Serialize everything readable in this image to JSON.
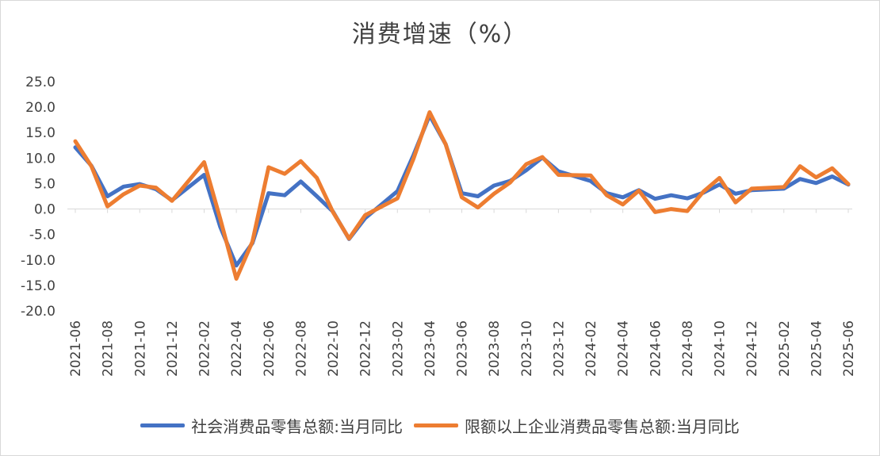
{
  "chart_data": {
    "type": "line",
    "title": "消费增速（%）",
    "xlabel": "",
    "ylabel": "",
    "ylim": [
      -20,
      25
    ],
    "yticks": [
      "25.0",
      "20.0",
      "15.0",
      "10.0",
      "5.0",
      "0.0",
      "-5.0",
      "-10.0",
      "-15.0",
      "-20.0"
    ],
    "ytick_values": [
      25,
      20,
      15,
      10,
      5,
      0,
      -5,
      -10,
      -15,
      -20
    ],
    "categories": [
      "2021-06",
      "2021-07",
      "2021-08",
      "2021-09",
      "2021-10",
      "2021-11",
      "2021-12",
      "2022-01",
      "2022-02",
      "2022-03",
      "2022-04",
      "2022-05",
      "2022-06",
      "2022-07",
      "2022-08",
      "2022-09",
      "2022-10",
      "2022-11",
      "2022-12",
      "2023-01",
      "2023-02",
      "2023-03",
      "2023-04",
      "2023-05",
      "2023-06",
      "2023-07",
      "2023-08",
      "2023-09",
      "2023-10",
      "2023-11",
      "2023-12",
      "2024-01",
      "2024-02",
      "2024-03",
      "2024-04",
      "2024-05",
      "2024-06",
      "2024-07",
      "2024-08",
      "2024-09",
      "2024-10",
      "2024-11",
      "2024-12",
      "2025-01",
      "2025-02",
      "2025-03",
      "2025-04",
      "2025-05",
      "2025-06"
    ],
    "xtick_labels": [
      "2021-06",
      "2021-08",
      "2021-10",
      "2021-12",
      "2022-02",
      "2022-04",
      "2022-06",
      "2022-08",
      "2022-10",
      "2022-12",
      "2023-02",
      "2023-04",
      "2023-06",
      "2023-08",
      "2023-10",
      "2023-12",
      "2024-02",
      "2024-04",
      "2024-06",
      "2024-08",
      "2024-10",
      "2024-12",
      "2025-02",
      "2025-04",
      "2025-06"
    ],
    "grid": false,
    "legend_position": "bottom",
    "series": [
      {
        "name": "社会消费品零售总额:当月同比",
        "color": "#4472c4",
        "values": [
          12.1,
          8.5,
          2.5,
          4.4,
          4.9,
          3.9,
          1.7,
          null,
          6.7,
          -3.5,
          -11.1,
          -6.7,
          3.1,
          2.7,
          5.4,
          2.5,
          -0.5,
          -5.9,
          -1.8,
          null,
          3.5,
          10.6,
          18.4,
          12.7,
          3.1,
          2.5,
          4.6,
          5.5,
          7.6,
          10.1,
          7.4,
          null,
          5.5,
          3.1,
          2.3,
          3.7,
          2.0,
          2.7,
          2.1,
          3.2,
          4.8,
          3.0,
          3.7,
          null,
          4.0,
          5.9,
          5.1,
          6.4,
          4.8
        ]
      },
      {
        "name": "限额以上企业消费品零售总额:当月同比",
        "color": "#ed7d31",
        "values": [
          13.3,
          8.4,
          0.5,
          2.9,
          4.6,
          4.2,
          1.6,
          null,
          9.2,
          -1.9,
          -13.7,
          -6.4,
          8.2,
          6.9,
          9.4,
          6.1,
          -0.6,
          -5.8,
          -1.2,
          null,
          2.1,
          9.9,
          19.0,
          12.7,
          2.3,
          0.3,
          3.0,
          5.2,
          8.8,
          10.2,
          6.7,
          null,
          6.6,
          2.7,
          0.9,
          3.6,
          -0.6,
          0.0,
          -0.4,
          3.4,
          6.1,
          1.3,
          4.0,
          null,
          4.3,
          8.4,
          6.2,
          8.0,
          4.9
        ]
      }
    ]
  }
}
